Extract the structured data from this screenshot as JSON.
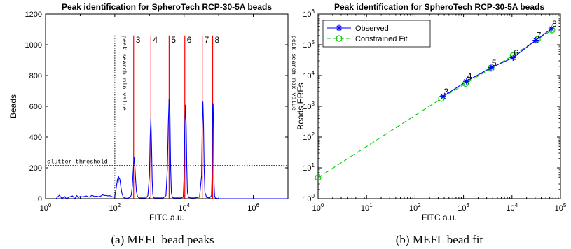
{
  "chart_data": [
    {
      "type": "line",
      "title": "Peak identification for SpheroTech RCP-30-5A beads",
      "xlabel": "FITC a.u.",
      "ylabel": "Beads",
      "x_scale": "log",
      "xlim": [
        1,
        10000000
      ],
      "ylim": [
        0,
        1200
      ],
      "x_ticks": [
        {
          "base": "10",
          "exp": "0",
          "value": 1
        },
        {
          "base": "10",
          "exp": "2",
          "value": 100
        },
        {
          "base": "10",
          "exp": "4",
          "value": 10000
        },
        {
          "base": "10",
          "exp": "6",
          "value": 1000000
        }
      ],
      "y_ticks": [
        0,
        200,
        400,
        600,
        800,
        1000,
        1200
      ],
      "series": [
        {
          "color": "#0000ff",
          "x": [
            2,
            2.5,
            3,
            3.5,
            4,
            5,
            6,
            7,
            8,
            9,
            10,
            12,
            15,
            18,
            22,
            26,
            30,
            35,
            40,
            45,
            50,
            56,
            63,
            70,
            80,
            90,
            100,
            105,
            110,
            115,
            120,
            125,
            130,
            140,
            150,
            160,
            175,
            190,
            210,
            230,
            250,
            280,
            300,
            320,
            340,
            360,
            380,
            400,
            420,
            450,
            500,
            600,
            700,
            800,
            900,
            1000,
            1050,
            1100,
            1150,
            1200,
            1250,
            1300,
            1400,
            1600,
            2000,
            2500,
            3000,
            3300,
            3500,
            3700,
            3900,
            4100,
            4300,
            4600,
            5000,
            6000,
            8000,
            9500,
            10000,
            10500,
            11000,
            11500,
            12000,
            12500,
            13500,
            16000,
            20000,
            28000,
            32000,
            33500,
            35000,
            36500,
            38000,
            40000,
            45000,
            55000,
            62000,
            65000,
            67000,
            69000,
            71000,
            73000,
            76000,
            80000,
            90000,
            100000,
            1000000,
            10000000
          ],
          "values": [
            0,
            22,
            0,
            15,
            0,
            12,
            18,
            0,
            20,
            8,
            15,
            12,
            18,
            10,
            22,
            14,
            16,
            12,
            18,
            25,
            20,
            22,
            18,
            20,
            15,
            10,
            12,
            45,
            70,
            100,
            130,
            105,
            140,
            125,
            75,
            35,
            10,
            5,
            3,
            3,
            5,
            10,
            25,
            80,
            180,
            270,
            210,
            120,
            50,
            15,
            5,
            5,
            5,
            5,
            20,
            150,
            400,
            520,
            350,
            120,
            30,
            8,
            5,
            5,
            5,
            5,
            20,
            200,
            480,
            650,
            560,
            200,
            40,
            8,
            5,
            5,
            5,
            10,
            150,
            460,
            610,
            480,
            200,
            40,
            8,
            5,
            5,
            10,
            150,
            470,
            630,
            480,
            200,
            40,
            8,
            5,
            20,
            200,
            600,
            620,
            450,
            120,
            20,
            5,
            2,
            0,
            0,
            0
          ]
        }
      ],
      "peaks": [
        {
          "label": "3",
          "x": 350
        },
        {
          "label": "4",
          "x": 1100
        },
        {
          "label": "5",
          "x": 3700
        },
        {
          "label": "6",
          "x": 10500
        },
        {
          "label": "7",
          "x": 33500
        },
        {
          "label": "8",
          "x": 67000
        }
      ],
      "peak_line_top": 1060,
      "peak_line_color": "#ff0000",
      "search_min_x": 100,
      "search_max_x": 10000000,
      "search_min_text": "peak search min value",
      "search_max_text": "peak search max value",
      "clutter_threshold": 215,
      "clutter_text": "clutter threshold",
      "caption": "(a)  MEFL bead peaks"
    },
    {
      "type": "line",
      "title": "Peak identification for SpheroTech RCP-30-5A beads",
      "xlabel": "FITC a.u.",
      "ylabel": "Beads ERFs",
      "x_scale": "log",
      "y_scale": "log",
      "xlim": [
        1,
        100000
      ],
      "ylim": [
        1,
        1000000
      ],
      "x_ticks": [
        {
          "base": "10",
          "exp": "0",
          "value": 1
        },
        {
          "base": "10",
          "exp": "1",
          "value": 10
        },
        {
          "base": "10",
          "exp": "2",
          "value": 100
        },
        {
          "base": "10",
          "exp": "3",
          "value": 1000
        },
        {
          "base": "10",
          "exp": "4",
          "value": 10000
        },
        {
          "base": "10",
          "exp": "5",
          "value": 100000
        }
      ],
      "y_ticks": [
        {
          "base": "10",
          "exp": "0",
          "value": 1
        },
        {
          "base": "10",
          "exp": "1",
          "value": 10
        },
        {
          "base": "10",
          "exp": "2",
          "value": 100
        },
        {
          "base": "10",
          "exp": "3",
          "value": 1000
        },
        {
          "base": "10",
          "exp": "4",
          "value": 10000
        },
        {
          "base": "10",
          "exp": "5",
          "value": 100000
        },
        {
          "base": "10",
          "exp": "6",
          "value": 1000000
        }
      ],
      "legend_position": "top-left",
      "series": [
        {
          "name": "Observed",
          "color": "#0000ff",
          "marker": "star",
          "x": [
            380,
            1150,
            3700,
            10500,
            31000,
            65000
          ],
          "values": [
            2100,
            6500,
            18000,
            38000,
            140000,
            330000
          ]
        },
        {
          "name": "Constrained Fit",
          "color": "#00cc00",
          "marker": "circle",
          "dashed": true,
          "x": [
            1,
            350,
            1100,
            3700,
            10500,
            33500,
            67000
          ],
          "values": [
            4.8,
            1800,
            5500,
            17000,
            45000,
            150000,
            300000
          ]
        }
      ],
      "point_labels": [
        {
          "label": "3",
          "x": 380,
          "y": 2100
        },
        {
          "label": "4",
          "x": 1150,
          "y": 6500
        },
        {
          "label": "5",
          "x": 3700,
          "y": 18000
        },
        {
          "label": "6",
          "x": 10500,
          "y": 38000
        },
        {
          "label": "7",
          "x": 31000,
          "y": 140000
        },
        {
          "label": "8",
          "x": 65000,
          "y": 330000
        }
      ],
      "caption": "(b)  MEFL bead fit"
    }
  ]
}
